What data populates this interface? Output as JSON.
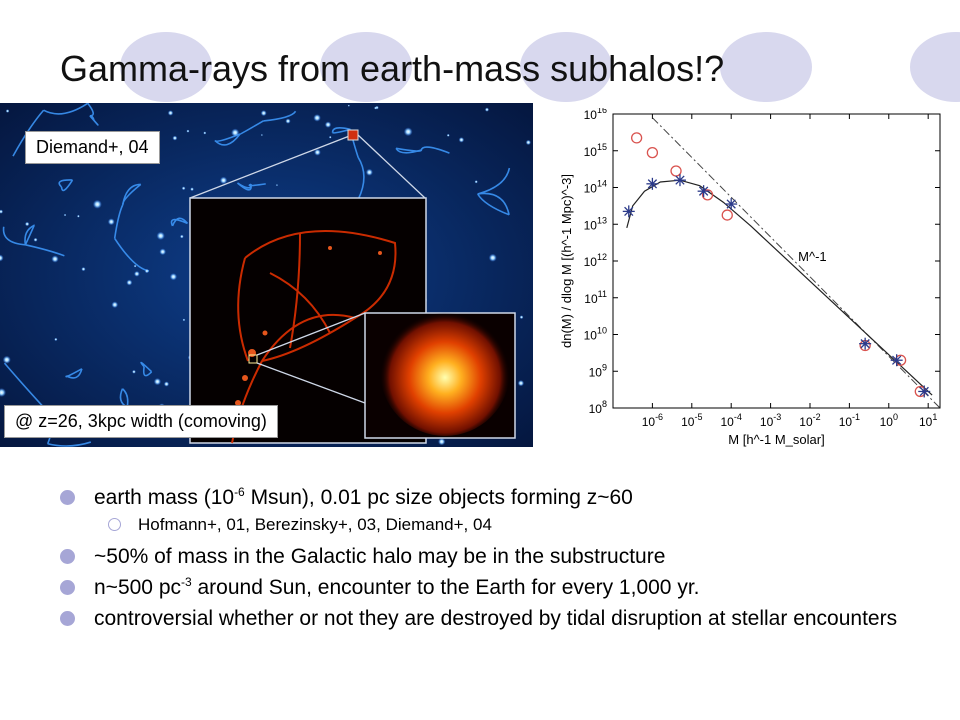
{
  "slide": {
    "title": "Gamma-rays from earth-mass subhalos!?",
    "sim_label": "Diemand+, 04",
    "sim_caption": "@ z=26, 3kpc width (comoving)"
  },
  "bullets": {
    "b1_a": "earth mass (10",
    "b1_sup": "-6",
    "b1_b": " Msun), 0.01 pc size objects forming z~60",
    "sub1": "Hofmann+, 01, Berezinsky+, 03, Diemand+, 04",
    "b2": "~50% of mass in the Galactic halo may be in the substructure",
    "b3_a": "n~500 pc",
    "b3_sup": "-3",
    "b3_b": " around Sun,  encounter to the Earth for every 1,000 yr.",
    "b4": "controversial whether or not they are destroyed by tidal disruption at stellar encounters"
  },
  "chart_data": {
    "type": "scatter",
    "log_x": true,
    "log_y": true,
    "xlim_exp": [
      -7,
      1.3
    ],
    "ylim_exp": [
      8,
      16
    ],
    "x_ticks": [
      "10^-6",
      "10^-5",
      "10^-4",
      "10^-3",
      "10^-2",
      "10^-1",
      "10^0",
      "10^1"
    ],
    "y_ticks": [
      "10^8",
      "10^9",
      "10^10",
      "10^11",
      "10^12",
      "10^13",
      "10^14",
      "10^15",
      "10^16"
    ],
    "xlabel": "M [h^-1 M_solar]",
    "ylabel": "dn(M) / dlog M [(h^-1 Mpc)^-3]",
    "annotation": "M^-1",
    "series": [
      {
        "marker": "circle",
        "color": "#d9534f",
        "points": [
          [
            -6.4,
            15.35
          ],
          [
            -6.0,
            14.95
          ],
          [
            -5.4,
            14.45
          ],
          [
            -4.6,
            13.8
          ],
          [
            -4.1,
            13.25
          ],
          [
            -0.6,
            9.7
          ],
          [
            0.3,
            9.3
          ],
          [
            0.8,
            8.45
          ]
        ]
      },
      {
        "marker": "asterisk",
        "color": "#2b3a8a",
        "points": [
          [
            -6.6,
            13.35
          ],
          [
            -6.0,
            14.1
          ],
          [
            -5.3,
            14.2
          ],
          [
            -4.7,
            13.9
          ],
          [
            -4.0,
            13.55
          ],
          [
            -0.6,
            9.75
          ],
          [
            0.2,
            9.3
          ],
          [
            0.9,
            8.45
          ]
        ]
      }
    ],
    "fit_curve": [
      [
        -6.65,
        12.9
      ],
      [
        -6.5,
        13.5
      ],
      [
        -6.2,
        13.9
      ],
      [
        -5.8,
        14.15
      ],
      [
        -5.3,
        14.2
      ],
      [
        -4.8,
        14.05
      ],
      [
        -4.2,
        13.6
      ],
      [
        -3.5,
        12.95
      ],
      [
        -2.5,
        11.95
      ],
      [
        -1.5,
        10.95
      ],
      [
        -0.5,
        9.95
      ],
      [
        0.5,
        8.95
      ],
      [
        1.1,
        8.35
      ]
    ],
    "dashdot_line": [
      [
        -6.0,
        15.9
      ],
      [
        1.3,
        8.0
      ]
    ]
  }
}
